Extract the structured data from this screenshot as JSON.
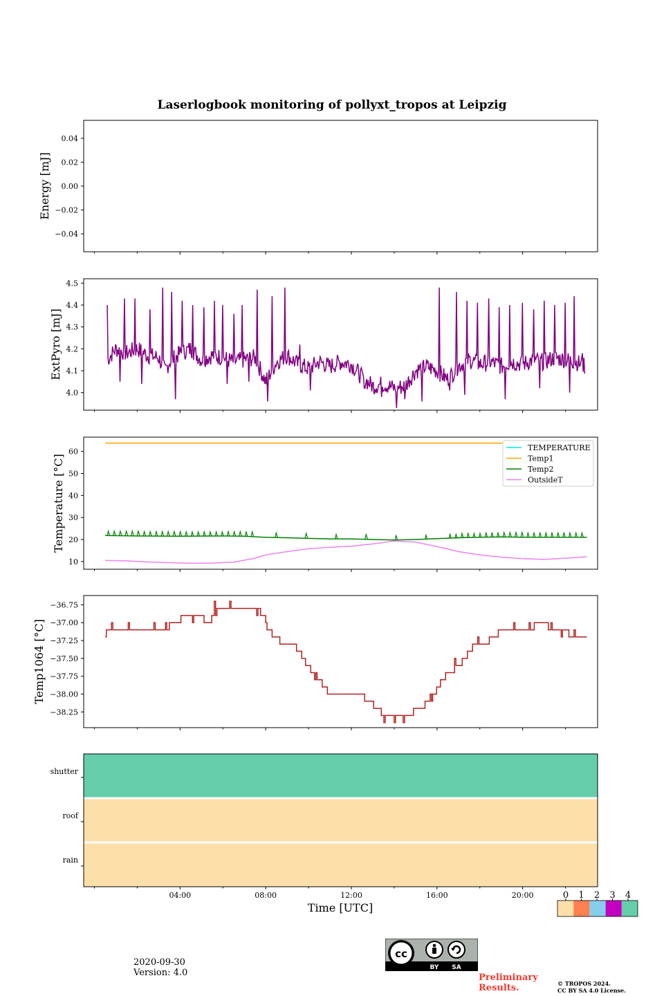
{
  "chart_data": {
    "title": "Laserlogbook monitoring of pollyxt_tropos at Leipzig",
    "x_axis": {
      "label": "Time [UTC]",
      "range_hours": [
        -0.5,
        23.5
      ],
      "tick_labels": [
        {
          "hour": 4,
          "label": "04:00"
        },
        {
          "hour": 8,
          "label": "08:00"
        },
        {
          "hour": 12,
          "label": "12:00"
        },
        {
          "hour": 16,
          "label": "16:00"
        },
        {
          "hour": 20,
          "label": "20:00"
        }
      ],
      "minor_tick_hours": [
        0,
        2,
        6,
        10,
        14,
        18,
        22
      ]
    },
    "panels": [
      {
        "id": "energy",
        "type": "line",
        "ylabel": "Energy [mJ]",
        "ylim": [
          -0.055,
          0.055
        ],
        "yticks": [
          0.04,
          0.02,
          0.0,
          -0.02,
          -0.04
        ],
        "ytick_labels": [
          "0.04",
          "0.02",
          "0.00",
          "−0.02",
          "−0.04"
        ],
        "series": []
      },
      {
        "id": "extpyro",
        "type": "line",
        "ylabel": "ExtPyro [mJ]",
        "ylim": [
          3.92,
          4.52
        ],
        "yticks": [
          4.5,
          4.4,
          4.3,
          4.2,
          4.1,
          4.0
        ],
        "ytick_labels": [
          "4.5",
          "4.4",
          "4.3",
          "4.2",
          "4.1",
          "4.0"
        ],
        "series": [
          {
            "name": "ExtPyro",
            "color": "#800080",
            "x": [
              0.6,
              1.0,
              1.5,
              2.0,
              2.5,
              3.0,
              3.3,
              3.5,
              4.0,
              4.5,
              5.0,
              5.5,
              6.0,
              6.5,
              7.0,
              7.5,
              8.0,
              8.5,
              9.0,
              9.5,
              10.0,
              10.5,
              11.0,
              11.5,
              12.0,
              12.5,
              13.0,
              13.5,
              14.0,
              14.5,
              15.0,
              15.5,
              16.0,
              16.5,
              17.0,
              17.5,
              18.0,
              18.5,
              19.0,
              19.5,
              20.0,
              20.5,
              21.0,
              21.5,
              22.0,
              22.5,
              22.9
            ],
            "y": [
              4.15,
              4.2,
              4.18,
              4.2,
              4.17,
              4.16,
              4.1,
              4.14,
              4.18,
              4.2,
              4.15,
              4.17,
              4.16,
              4.14,
              4.15,
              4.16,
              4.05,
              4.14,
              4.17,
              4.13,
              4.11,
              4.14,
              4.12,
              4.14,
              4.13,
              4.07,
              4.03,
              4.04,
              4.02,
              4.03,
              4.1,
              4.12,
              4.1,
              4.06,
              4.12,
              4.15,
              4.13,
              4.14,
              4.12,
              4.14,
              4.13,
              4.15,
              4.14,
              4.16,
              4.15,
              4.14,
              4.12
            ],
            "spike_x": [
              0.6,
              1.4,
              1.9,
              2.6,
              3.2,
              3.6,
              4.1,
              4.6,
              5.1,
              5.6,
              6.0,
              6.5,
              6.9,
              7.6,
              8.3,
              8.9,
              9.6,
              16.1,
              16.9,
              17.4,
              17.9,
              18.4,
              18.9,
              19.4,
              20.0,
              20.5,
              21.0,
              21.5,
              22.0,
              22.4,
              22.8
            ],
            "spike_y": [
              4.4,
              4.43,
              4.43,
              4.38,
              4.48,
              4.46,
              4.42,
              4.4,
              4.39,
              4.42,
              4.4,
              4.36,
              4.4,
              4.47,
              4.44,
              4.48,
              4.22,
              4.48,
              4.46,
              4.42,
              4.41,
              4.43,
              4.39,
              4.4,
              4.41,
              4.38,
              4.42,
              4.4,
              4.41,
              4.44,
              4.18
            ],
            "dip_x": [
              1.2,
              2.2,
              3.8,
              6.2,
              7.2,
              8.1,
              10.1,
              12.6,
              13.4,
              14.1,
              14.5,
              15.3,
              16.6,
              17.3,
              19.2,
              20.8,
              22.2
            ],
            "dip_y": [
              4.05,
              4.04,
              3.97,
              4.04,
              4.05,
              3.96,
              4.01,
              4.02,
              3.98,
              3.93,
              3.97,
              3.96,
              4.01,
              3.99,
              3.97,
              4.02,
              4.0
            ]
          }
        ]
      },
      {
        "id": "temperature",
        "type": "line",
        "ylabel": "Temperature [°C]",
        "ylim": [
          6.5,
          66.5
        ],
        "yticks": [
          60,
          50,
          40,
          30,
          20,
          10
        ],
        "ytick_labels": [
          "60",
          "50",
          "40",
          "30",
          "20",
          "10"
        ],
        "legend_position": "top-right",
        "series": [
          {
            "name": "TEMPERATURE",
            "color": "#00e5ee",
            "x": [],
            "y": []
          },
          {
            "name": "Temp1",
            "color": "#ffa500",
            "x": [
              0.5,
              23.0
            ],
            "y": [
              63.8,
              63.8
            ]
          },
          {
            "name": "Temp2",
            "color": "#008000",
            "x": [
              0.5,
              2.0,
              4.0,
              6.0,
              7.0,
              8.0,
              9.0,
              10.0,
              11.0,
              12.0,
              13.0,
              14.0,
              15.0,
              16.0,
              17.0,
              18.0,
              19.0,
              20.0,
              21.0,
              22.0,
              23.0
            ],
            "y": [
              21.8,
              21.6,
              21.5,
              21.6,
              21.5,
              21.0,
              20.8,
              20.5,
              20.3,
              20.3,
              20.0,
              19.8,
              20.0,
              20.4,
              20.8,
              21.0,
              21.2,
              21.0,
              21.0,
              21.0,
              21.0
            ]
          },
          {
            "name": "OutsideT",
            "color": "#ee82ee",
            "x": [
              0.5,
              1.5,
              2.5,
              3.5,
              4.5,
              5.5,
              6.5,
              7.5,
              8.0,
              9.0,
              10.0,
              11.0,
              12.0,
              13.0,
              14.0,
              15.0,
              16.0,
              17.0,
              18.0,
              19.0,
              20.0,
              21.0,
              22.0,
              23.0
            ],
            "y": [
              10.5,
              10.3,
              9.8,
              9.5,
              9.2,
              9.3,
              9.7,
              11.5,
              13.0,
              14.5,
              15.8,
              16.5,
              17.0,
              18.0,
              19.3,
              18.8,
              16.8,
              14.5,
              13.0,
              12.0,
              11.3,
              11.0,
              11.5,
              12.2
            ]
          }
        ]
      },
      {
        "id": "temp1064",
        "type": "line",
        "ylabel": "Temp1064 [°C]",
        "ylim": [
          -38.47,
          -36.62
        ],
        "yticks": [
          -36.75,
          -37.0,
          -37.25,
          -37.5,
          -37.75,
          -38.0,
          -38.25
        ],
        "ytick_labels": [
          "−36.75",
          "−37.00",
          "−37.25",
          "−37.50",
          "−37.75",
          "−38.00",
          "−38.25"
        ],
        "series": [
          {
            "name": "Temp1064",
            "color": "#b22222",
            "x": [
              0.5,
              0.6,
              1.5,
              2.5,
              3.2,
              3.8,
              4.2,
              4.9,
              5.3,
              5.8,
              6.2,
              7.5,
              7.9,
              8.1,
              8.4,
              8.8,
              9.2,
              9.6,
              9.9,
              10.2,
              10.5,
              11.0,
              12.0,
              12.4,
              12.8,
              13.2,
              13.6,
              14.0,
              14.6,
              15.2,
              15.6,
              15.9,
              16.2,
              16.6,
              17.0,
              17.5,
              17.8,
              18.2,
              18.6,
              19.0,
              19.6,
              20.2,
              20.8,
              21.5,
              22.0,
              22.3,
              22.6,
              23.0
            ],
            "y": [
              -37.2,
              -37.1,
              -37.1,
              -37.1,
              -37.1,
              -37.0,
              -36.9,
              -36.9,
              -37.0,
              -36.8,
              -36.8,
              -36.8,
              -36.9,
              -37.1,
              -37.2,
              -37.3,
              -37.3,
              -37.4,
              -37.6,
              -37.7,
              -37.8,
              -38.0,
              -38.0,
              -38.0,
              -38.1,
              -38.2,
              -38.3,
              -38.3,
              -38.3,
              -38.2,
              -38.1,
              -38.0,
              -37.8,
              -37.7,
              -37.6,
              -37.4,
              -37.3,
              -37.3,
              -37.2,
              -37.1,
              -37.1,
              -37.1,
              -37.0,
              -37.1,
              -37.1,
              -37.2,
              -37.2,
              -37.2
            ],
            "flicker_x": [
              0.8,
              1.6,
              2.8,
              3.3,
              4.1,
              4.6,
              5.6,
              6.3,
              6.8,
              7.6,
              8.5,
              9.1,
              10.3,
              11.2,
              12.9,
              13.5,
              14.0,
              14.4,
              15.7,
              16.8,
              17.9,
              18.3,
              19.0,
              19.6,
              20.3,
              21.3,
              21.8,
              22.4
            ],
            "flicker_y": [
              -37.0,
              -37.0,
              -37.0,
              -37.0,
              -36.9,
              -37.0,
              -36.7,
              -36.7,
              -36.8,
              -36.9,
              -37.2,
              -37.3,
              -37.8,
              -38.0,
              -38.1,
              -38.4,
              -38.4,
              -38.4,
              -38.0,
              -37.5,
              -37.2,
              -37.3,
              -37.1,
              -37.0,
              -37.0,
              -37.0,
              -37.2,
              -37.1
            ]
          }
        ]
      },
      {
        "id": "status",
        "type": "heatmap",
        "rows": [
          {
            "label": "shutter",
            "status": 4
          },
          {
            "label": "roof",
            "status": 0
          },
          {
            "label": "rain",
            "status": 0
          }
        ]
      }
    ],
    "status_colorbar": {
      "labels": [
        "0",
        "1",
        "2",
        "3",
        "4"
      ],
      "colors": [
        "#fddfaa",
        "#fe7f50",
        "#86cfec",
        "#c200c2",
        "#66cdaa"
      ]
    }
  },
  "footer": {
    "date": "2020-09-30",
    "version": "Version: 4.0",
    "preliminary_line1": "Preliminary",
    "preliminary_line2": "Results.",
    "copyright_line1": "© TROPOS 2024.",
    "copyright_line2": "CC BY SA 4.0 License.",
    "license_badge": {
      "by": "BY",
      "sa": "SA",
      "cc": "cc"
    }
  }
}
